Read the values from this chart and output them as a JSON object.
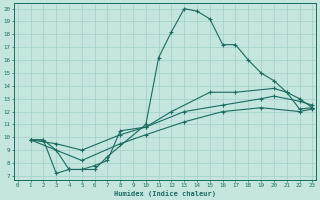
{
  "xlabel": "Humidex (Indice chaleur)",
  "bg_color": "#c5e5df",
  "grid_color": "#9fcfca",
  "line_color": "#1a6b60",
  "xlim": [
    -0.3,
    23.3
  ],
  "ylim": [
    6.7,
    20.4
  ],
  "xtick_vals": [
    0,
    1,
    2,
    3,
    4,
    5,
    6,
    7,
    8,
    9,
    10,
    11,
    12,
    13,
    14,
    15,
    16,
    17,
    18,
    19,
    20,
    21,
    22,
    23
  ],
  "ytick_vals": [
    7,
    8,
    9,
    10,
    11,
    12,
    13,
    14,
    15,
    16,
    17,
    18,
    19,
    20
  ],
  "line1_x": [
    1,
    2,
    3,
    4,
    5,
    6,
    7,
    10,
    11,
    12,
    13,
    14,
    15,
    16,
    17,
    18,
    19,
    20,
    21,
    22,
    23
  ],
  "line1_y": [
    9.8,
    9.8,
    7.2,
    7.5,
    7.5,
    7.5,
    8.5,
    11.0,
    16.2,
    18.2,
    20.0,
    19.8,
    19.2,
    17.2,
    17.2,
    16.0,
    15.0,
    14.4,
    13.5,
    13.0,
    12.3
  ],
  "line2_x": [
    1,
    2,
    3,
    4,
    5,
    6,
    7,
    8,
    10,
    12,
    15,
    17,
    20,
    21,
    22,
    23
  ],
  "line2_y": [
    9.8,
    9.8,
    9.0,
    7.5,
    7.5,
    7.8,
    8.2,
    10.5,
    10.8,
    12.0,
    13.5,
    13.5,
    13.8,
    13.5,
    12.2,
    12.3
  ],
  "line3_x": [
    1,
    3,
    5,
    8,
    10,
    13,
    16,
    19,
    20,
    22,
    23
  ],
  "line3_y": [
    9.8,
    9.5,
    9.0,
    10.2,
    10.8,
    12.0,
    12.5,
    13.0,
    13.2,
    12.8,
    12.5
  ],
  "line4_x": [
    1,
    5,
    8,
    10,
    13,
    16,
    19,
    22,
    23
  ],
  "line4_y": [
    9.8,
    8.2,
    9.5,
    10.2,
    11.2,
    12.0,
    12.3,
    12.0,
    12.2
  ]
}
